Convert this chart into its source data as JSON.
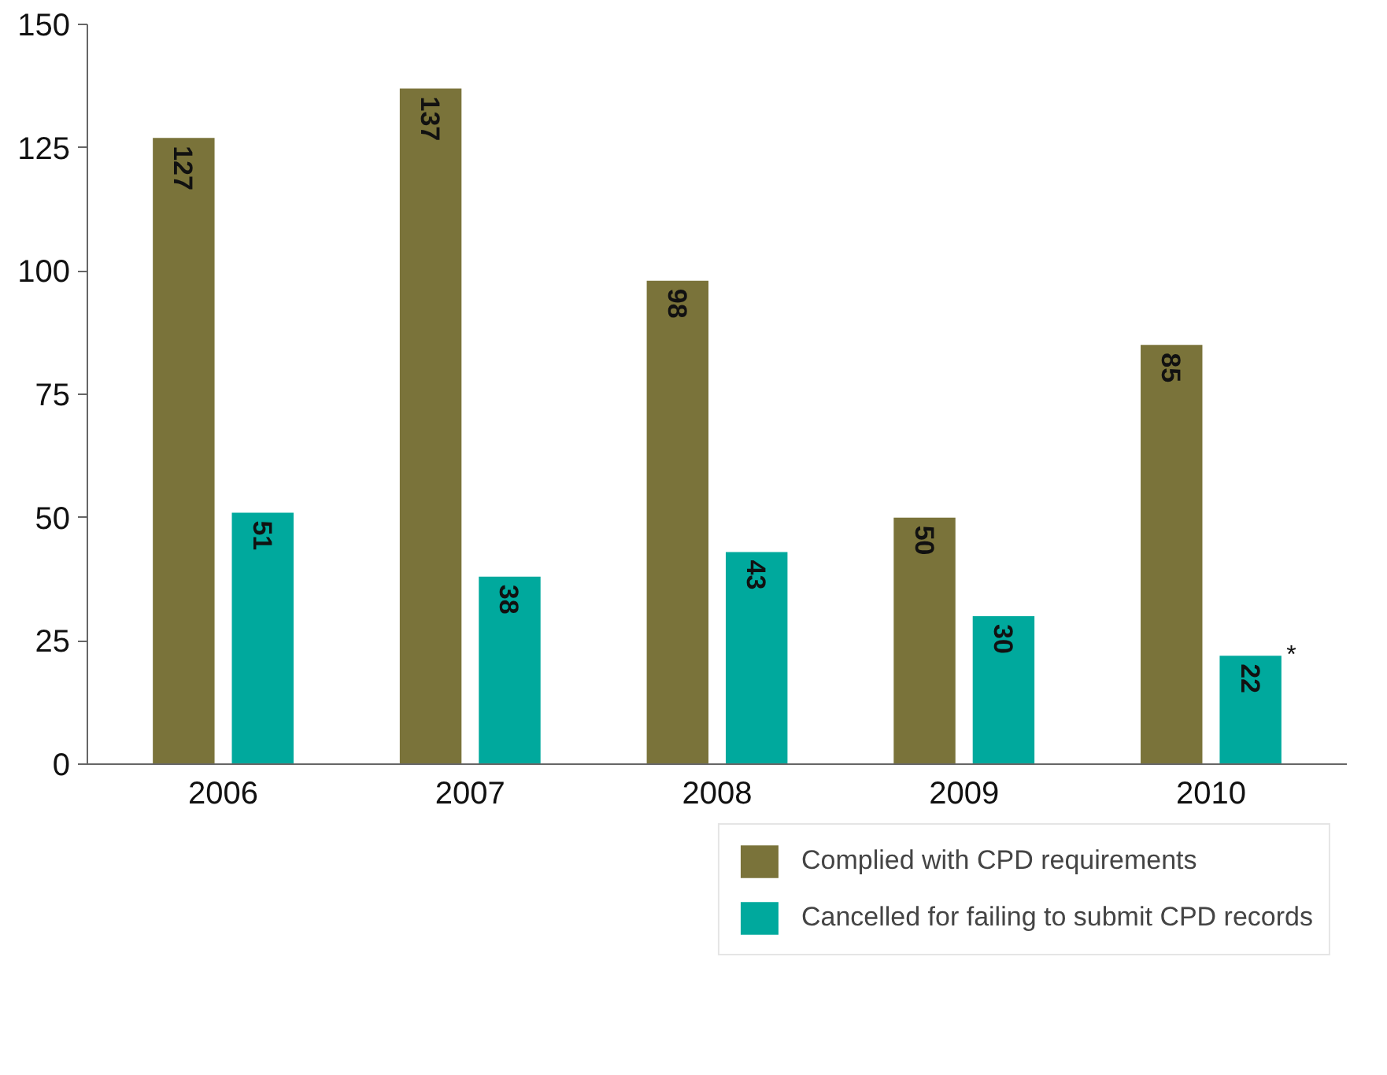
{
  "chart_data": {
    "type": "bar",
    "categories": [
      "2006",
      "2007",
      "2008",
      "2009",
      "2010"
    ],
    "series": [
      {
        "name": "Complied with CPD requirements",
        "color": "#7a733a",
        "values": [
          127,
          137,
          98,
          50,
          85
        ]
      },
      {
        "name": "Cancelled for failing to submit CPD records",
        "color": "#00a99d",
        "values": [
          51,
          38,
          43,
          30,
          22
        ]
      }
    ],
    "ylim": [
      0,
      150
    ],
    "yticks": [
      0,
      25,
      50,
      75,
      100,
      125,
      150
    ],
    "grid": false,
    "legend": "bottom right",
    "data_labels": true,
    "annotations": [
      "*"
    ]
  }
}
